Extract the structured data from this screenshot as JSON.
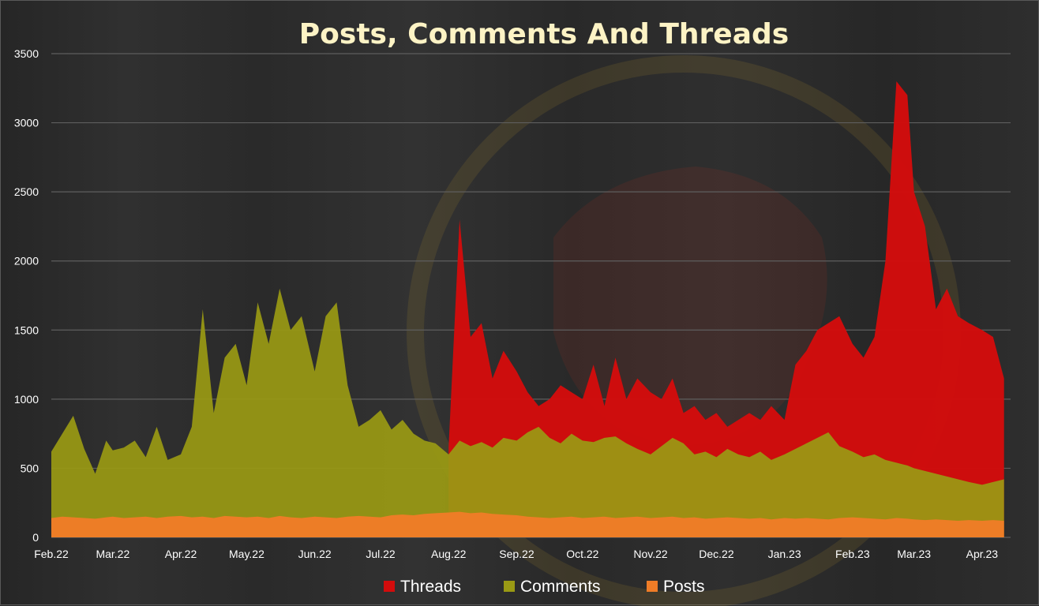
{
  "chart_data": {
    "type": "area",
    "title": "Posts, Comments And Threads",
    "xlabel": "",
    "ylabel": "",
    "ylim": [
      0,
      3500
    ],
    "yticks": [
      "0",
      "500",
      "1000",
      "1500",
      "2000",
      "2500",
      "3000",
      "3500"
    ],
    "xticks": [
      "Feb.22",
      "Mar.22",
      "Apr.22",
      "May.22",
      "Jun.22",
      "Jul.22",
      "Aug.22",
      "Sep.22",
      "Oct.22",
      "Nov.22",
      "Dec.22",
      "Jan.23",
      "Feb.23",
      "Mar.23",
      "Apr.23"
    ],
    "grid": "horizontal",
    "legend_position": "bottom",
    "stacked": false,
    "x": [
      "2022-02-01",
      "2022-02-06",
      "2022-02-11",
      "2022-02-16",
      "2022-02-21",
      "2022-02-26",
      "2022-03-01",
      "2022-03-06",
      "2022-03-11",
      "2022-03-16",
      "2022-03-21",
      "2022-03-26",
      "2022-04-01",
      "2022-04-06",
      "2022-04-11",
      "2022-04-16",
      "2022-04-21",
      "2022-04-26",
      "2022-05-01",
      "2022-05-06",
      "2022-05-11",
      "2022-05-16",
      "2022-05-21",
      "2022-05-26",
      "2022-06-01",
      "2022-06-06",
      "2022-06-11",
      "2022-06-16",
      "2022-06-21",
      "2022-06-26",
      "2022-07-01",
      "2022-07-06",
      "2022-07-11",
      "2022-07-16",
      "2022-07-21",
      "2022-07-26",
      "2022-08-01",
      "2022-08-06",
      "2022-08-11",
      "2022-08-16",
      "2022-08-21",
      "2022-08-26",
      "2022-09-01",
      "2022-09-06",
      "2022-09-11",
      "2022-09-16",
      "2022-09-21",
      "2022-09-26",
      "2022-10-01",
      "2022-10-06",
      "2022-10-11",
      "2022-10-16",
      "2022-10-21",
      "2022-10-26",
      "2022-11-01",
      "2022-11-06",
      "2022-11-11",
      "2022-11-16",
      "2022-11-21",
      "2022-11-26",
      "2022-12-01",
      "2022-12-06",
      "2022-12-11",
      "2022-12-16",
      "2022-12-21",
      "2022-12-26",
      "2023-01-01",
      "2023-01-06",
      "2023-01-11",
      "2023-01-16",
      "2023-01-21",
      "2023-01-26",
      "2023-02-01",
      "2023-02-06",
      "2023-02-11",
      "2023-02-16",
      "2023-02-21",
      "2023-02-26",
      "2023-03-01",
      "2023-03-06",
      "2023-03-11",
      "2023-03-16",
      "2023-03-21",
      "2023-03-26",
      "2023-04-01",
      "2023-04-06",
      "2023-04-11"
    ],
    "series": [
      {
        "name": "Threads",
        "color": "#d30c0c",
        "values": [
          null,
          null,
          null,
          null,
          null,
          null,
          null,
          null,
          null,
          null,
          null,
          null,
          null,
          null,
          null,
          null,
          null,
          null,
          null,
          null,
          null,
          null,
          null,
          null,
          null,
          null,
          null,
          null,
          null,
          null,
          null,
          null,
          null,
          null,
          null,
          null,
          650,
          2300,
          1450,
          1550,
          1150,
          1350,
          1200,
          1050,
          950,
          1000,
          1100,
          1050,
          1000,
          1250,
          950,
          1300,
          1000,
          1150,
          1050,
          1000,
          1150,
          900,
          950,
          850,
          900,
          800,
          850,
          900,
          850,
          950,
          850,
          1250,
          1350,
          1500,
          1550,
          1600,
          1400,
          1300,
          1450,
          2000,
          3300,
          3200,
          2500,
          2250,
          1650,
          1800,
          1600,
          1550,
          1500,
          1450,
          1150
        ]
      },
      {
        "name": "Comments",
        "color": "#9a9a14",
        "values": [
          620,
          750,
          880,
          640,
          460,
          700,
          630,
          650,
          700,
          580,
          800,
          560,
          600,
          800,
          1650,
          900,
          1300,
          1400,
          1100,
          1700,
          1400,
          1800,
          1500,
          1600,
          1200,
          1600,
          1700,
          1100,
          800,
          850,
          920,
          780,
          850,
          750,
          700,
          680,
          600,
          700,
          660,
          690,
          650,
          720,
          700,
          760,
          800,
          720,
          680,
          750,
          700,
          690,
          720,
          730,
          680,
          640,
          600,
          660,
          720,
          680,
          600,
          620,
          580,
          640,
          600,
          580,
          620,
          560,
          600,
          640,
          680,
          720,
          760,
          660,
          620,
          580,
          600,
          560,
          540,
          520,
          500,
          480,
          460,
          440,
          420,
          400,
          380,
          400,
          420
        ]
      },
      {
        "name": "Posts",
        "color": "#ef7c27",
        "values": [
          140,
          150,
          145,
          140,
          135,
          145,
          150,
          140,
          145,
          150,
          140,
          150,
          155,
          145,
          150,
          140,
          155,
          150,
          145,
          150,
          140,
          155,
          145,
          140,
          150,
          145,
          140,
          150,
          155,
          150,
          145,
          160,
          165,
          160,
          170,
          175,
          180,
          185,
          175,
          180,
          170,
          165,
          160,
          150,
          145,
          140,
          145,
          150,
          140,
          145,
          150,
          140,
          145,
          150,
          140,
          145,
          150,
          140,
          145,
          135,
          140,
          145,
          140,
          135,
          140,
          130,
          140,
          135,
          140,
          135,
          130,
          140,
          145,
          140,
          135,
          130,
          140,
          135,
          130,
          125,
          130,
          125,
          120,
          125,
          120,
          125,
          120
        ]
      }
    ]
  }
}
